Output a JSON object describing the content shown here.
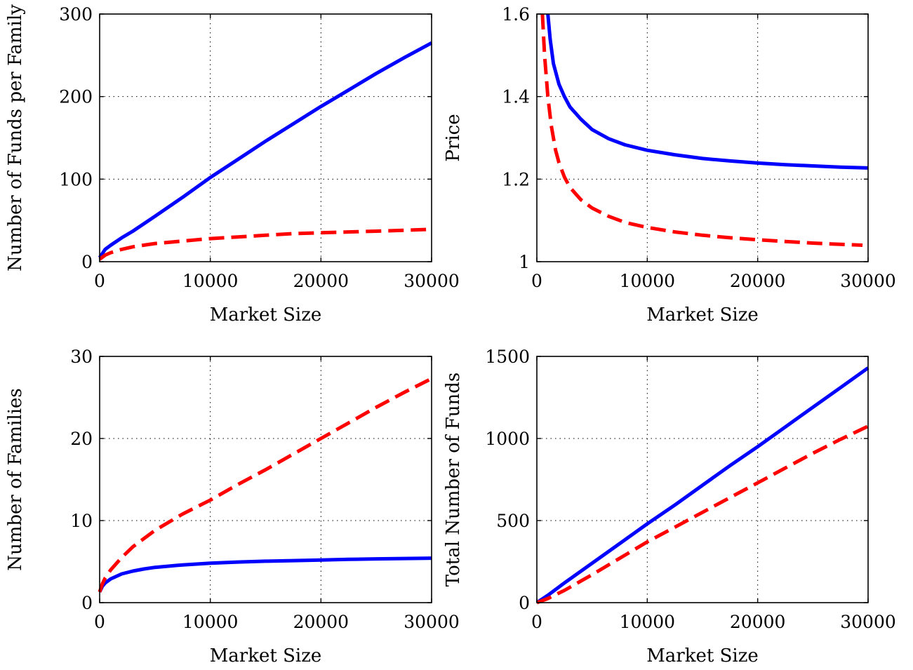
{
  "colors": {
    "solid": "#0000ff",
    "dashed": "#ff0000"
  },
  "chart_data": [
    {
      "type": "line",
      "xlabel": "Market Size",
      "ylabel": "Number of Funds per Family",
      "xlim": [
        0,
        30000
      ],
      "ylim": [
        0,
        300
      ],
      "xticks": [
        0,
        10000,
        20000,
        30000
      ],
      "yticks": [
        0,
        100,
        200,
        300
      ],
      "grid": true,
      "series": [
        {
          "style": "solid",
          "color": "#0000ff",
          "x": [
            0,
            500,
            1000,
            2000,
            3000,
            5000,
            7500,
            10000,
            12500,
            15000,
            17500,
            20000,
            22500,
            25000,
            27500,
            30000
          ],
          "y": [
            5,
            15,
            20,
            29,
            37,
            55,
            78,
            102,
            124,
            146,
            167,
            188,
            208,
            228,
            247,
            265
          ]
        },
        {
          "style": "dashed",
          "color": "#ff0000",
          "x": [
            0,
            500,
            1000,
            2000,
            3000,
            5000,
            7500,
            10000,
            12500,
            15000,
            17500,
            20000,
            22500,
            25000,
            27500,
            29500
          ],
          "y": [
            3,
            8,
            11,
            15,
            18,
            22,
            25,
            28,
            30,
            32,
            34,
            35,
            36,
            37,
            38,
            39
          ]
        }
      ]
    },
    {
      "type": "line",
      "xlabel": "Market Size",
      "ylabel": "Price",
      "xlim": [
        0,
        30000
      ],
      "ylim": [
        1,
        1.6
      ],
      "xticks": [
        0,
        10000,
        20000,
        30000
      ],
      "yticks": [
        1,
        1.2,
        1.4,
        1.6
      ],
      "yticklabels": [
        "1",
        "1.2",
        "1.4",
        "1.6"
      ],
      "grid": true,
      "series": [
        {
          "style": "solid",
          "color": "#0000ff",
          "x": [
            1000,
            1200,
            1500,
            2000,
            2500,
            3000,
            4000,
            5000,
            6500,
            8000,
            10000,
            12500,
            15000,
            17500,
            20000,
            22500,
            25000,
            27500,
            30000
          ],
          "y": [
            1.6,
            1.54,
            1.48,
            1.43,
            1.4,
            1.375,
            1.345,
            1.32,
            1.298,
            1.283,
            1.27,
            1.259,
            1.25,
            1.244,
            1.239,
            1.235,
            1.232,
            1.229,
            1.227
          ]
        },
        {
          "style": "dashed",
          "color": "#ff0000",
          "x": [
            500,
            700,
            1000,
            1300,
            1700,
            2000,
            2500,
            3000,
            4000,
            5000,
            6500,
            8000,
            10000,
            12500,
            15000,
            17500,
            20000,
            22500,
            25000,
            27500,
            29500
          ],
          "y": [
            1.6,
            1.5,
            1.4,
            1.33,
            1.27,
            1.24,
            1.205,
            1.18,
            1.15,
            1.13,
            1.11,
            1.095,
            1.083,
            1.072,
            1.064,
            1.058,
            1.053,
            1.049,
            1.045,
            1.042,
            1.04
          ]
        }
      ]
    },
    {
      "type": "line",
      "xlabel": "Market Size",
      "ylabel": "Number of Families",
      "xlim": [
        0,
        30000
      ],
      "ylim": [
        0,
        30
      ],
      "xticks": [
        0,
        10000,
        20000,
        30000
      ],
      "yticks": [
        0,
        10,
        20,
        30
      ],
      "grid": true,
      "series": [
        {
          "style": "solid",
          "color": "#0000ff",
          "x": [
            0,
            250,
            500,
            1000,
            2000,
            3000,
            4000,
            5000,
            7500,
            10000,
            12500,
            15000,
            17500,
            20000,
            22500,
            25000,
            27500,
            30000
          ],
          "y": [
            1.3,
            2.0,
            2.4,
            2.9,
            3.5,
            3.85,
            4.1,
            4.3,
            4.6,
            4.8,
            4.95,
            5.05,
            5.12,
            5.2,
            5.27,
            5.33,
            5.38,
            5.42
          ]
        },
        {
          "style": "dashed",
          "color": "#ff0000",
          "x": [
            0,
            250,
            500,
            1000,
            2000,
            3000,
            5000,
            7500,
            10000,
            12500,
            15000,
            17500,
            20000,
            22500,
            25000,
            27500,
            30000
          ],
          "y": [
            1.3,
            2.3,
            3.0,
            4.0,
            5.5,
            6.8,
            8.8,
            10.8,
            12.5,
            14.4,
            16.2,
            18.1,
            20.0,
            21.9,
            23.8,
            25.6,
            27.3
          ]
        }
      ]
    },
    {
      "type": "line",
      "xlabel": "Market Size",
      "ylabel": "Total Number of Funds",
      "xlim": [
        0,
        30000
      ],
      "ylim": [
        0,
        1500
      ],
      "xticks": [
        0,
        10000,
        20000,
        30000
      ],
      "yticks": [
        0,
        500,
        1000,
        1500
      ],
      "grid": true,
      "series": [
        {
          "style": "solid",
          "color": "#0000ff",
          "x": [
            0,
            1000,
            2500,
            5000,
            7500,
            10000,
            12500,
            15000,
            17500,
            20000,
            22500,
            25000,
            27500,
            30000
          ],
          "y": [
            0,
            45,
            120,
            240,
            360,
            480,
            595,
            715,
            835,
            950,
            1070,
            1190,
            1310,
            1430
          ]
        },
        {
          "style": "dashed",
          "color": "#ff0000",
          "x": [
            0,
            1000,
            2500,
            5000,
            7500,
            10000,
            12500,
            15000,
            17500,
            20000,
            22500,
            25000,
            27500,
            30000
          ],
          "y": [
            0,
            25,
            75,
            170,
            270,
            370,
            460,
            550,
            640,
            730,
            820,
            910,
            995,
            1075
          ]
        }
      ]
    }
  ]
}
